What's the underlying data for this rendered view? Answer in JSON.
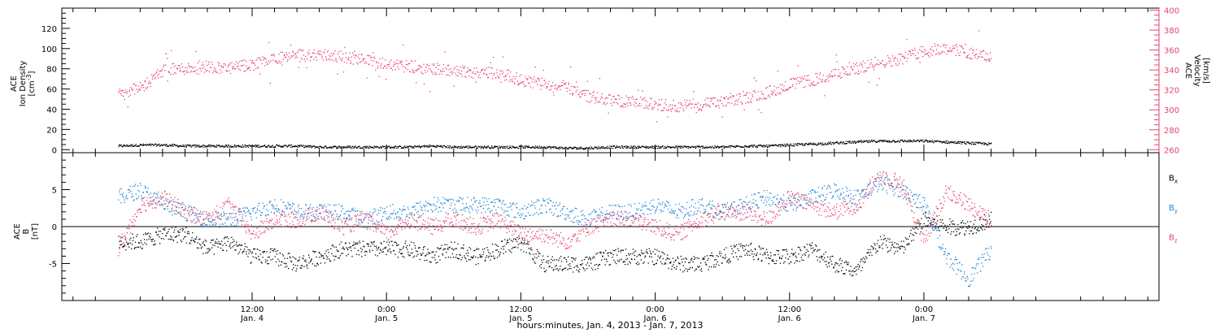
{
  "colors": {
    "black": "#000000",
    "pink": "#e8436b",
    "blue": "#1f87d6"
  },
  "chart_data": [
    {
      "type": "scatter",
      "panel": "top",
      "y_left_label_lines": [
        "ACE",
        "Ion Density",
        "[cm^-3]"
      ],
      "y_right_label_lines": [
        "ACE",
        "Velocity",
        "[km/s]"
      ],
      "ylim_left": [
        -3,
        140
      ],
      "ylim_right": [
        257,
        402
      ],
      "yticks_left": [
        0,
        20,
        40,
        60,
        80,
        100,
        120
      ],
      "yticks_right": [
        260,
        280,
        300,
        320,
        340,
        360,
        380,
        400
      ],
      "series": [
        {
          "axis": "left",
          "color": "#000000",
          "x": [
            0,
            2,
            4,
            6,
            8,
            10,
            12,
            14,
            16,
            18,
            20,
            22,
            24,
            26,
            28,
            30,
            32,
            34,
            36,
            38,
            40,
            42,
            44,
            46,
            48,
            50,
            52,
            54,
            56,
            58,
            60,
            62,
            64,
            66,
            68,
            70,
            72,
            74,
            76,
            78
          ],
          "values": [
            4,
            5,
            5,
            4,
            4,
            4,
            4,
            4,
            4,
            3,
            3,
            3,
            3,
            3,
            4,
            3,
            3,
            3,
            3,
            3,
            2,
            2,
            3,
            3,
            3,
            3,
            3,
            3,
            4,
            4,
            5,
            6,
            7,
            8,
            9,
            9,
            9,
            8,
            7,
            6
          ]
        },
        {
          "axis": "right",
          "color": "#e8436b",
          "x": [
            0,
            2,
            4,
            6,
            8,
            10,
            12,
            14,
            16,
            18,
            20,
            22,
            24,
            26,
            28,
            30,
            32,
            34,
            36,
            38,
            40,
            42,
            44,
            46,
            48,
            50,
            52,
            54,
            56,
            58,
            60,
            62,
            64,
            66,
            68,
            70,
            72,
            74,
            76,
            78
          ],
          "values": [
            318,
            322,
            340,
            342,
            344,
            342,
            346,
            352,
            354,
            356,
            354,
            350,
            346,
            344,
            342,
            340,
            338,
            338,
            330,
            326,
            324,
            314,
            310,
            308,
            306,
            304,
            306,
            308,
            312,
            318,
            326,
            330,
            336,
            342,
            348,
            352,
            360,
            362,
            358,
            352
          ]
        }
      ]
    },
    {
      "type": "scatter",
      "panel": "bottom",
      "y_label_lines": [
        "ACE",
        "B",
        "[nT]"
      ],
      "ylim": [
        -10,
        10
      ],
      "yticks": [
        -5,
        0,
        5
      ],
      "legend_position": "right",
      "legend": [
        {
          "name": "Bx",
          "base": "B",
          "sub": "x",
          "color": "#000000"
        },
        {
          "name": "By",
          "base": "B",
          "sub": "y",
          "color": "#1f87d6"
        },
        {
          "name": "Bz",
          "base": "B",
          "sub": "z",
          "color": "#e8436b"
        }
      ],
      "series": [
        {
          "name": "Bx",
          "color": "#000000",
          "x": [
            0,
            2,
            4,
            6,
            8,
            10,
            12,
            14,
            16,
            18,
            20,
            22,
            24,
            26,
            28,
            30,
            32,
            34,
            36,
            38,
            40,
            42,
            44,
            46,
            48,
            50,
            52,
            54,
            56,
            58,
            60,
            62,
            64,
            66,
            68,
            70,
            72,
            74,
            76,
            78
          ],
          "values": [
            -2,
            -2,
            -1,
            -1,
            -3,
            -2,
            -4,
            -4,
            -5,
            -4,
            -3,
            -3,
            -3,
            -3,
            -4,
            -3,
            -4,
            -3,
            -2,
            -5,
            -5,
            -5,
            -4,
            -4,
            -4,
            -5,
            -5,
            -4,
            -3,
            -4,
            -4,
            -3,
            -5,
            -6,
            -2,
            -3,
            1,
            0,
            0,
            1
          ]
        },
        {
          "name": "By",
          "color": "#1f87d6",
          "x": [
            0,
            2,
            4,
            6,
            8,
            10,
            12,
            14,
            16,
            18,
            20,
            22,
            24,
            26,
            28,
            30,
            32,
            34,
            36,
            38,
            40,
            42,
            44,
            46,
            48,
            50,
            52,
            54,
            56,
            58,
            60,
            62,
            64,
            66,
            68,
            70,
            72,
            74,
            76,
            78
          ],
          "values": [
            4,
            5,
            3,
            2,
            1,
            1,
            2,
            3,
            2,
            2,
            2,
            1,
            2,
            2,
            3,
            3,
            3,
            3,
            2,
            3,
            2,
            1,
            2,
            2,
            3,
            2,
            3,
            2,
            3,
            4,
            3,
            4,
            5,
            4,
            6,
            5,
            3,
            -4,
            -7,
            -3
          ]
        },
        {
          "name": "Bz",
          "color": "#e8436b",
          "x": [
            0,
            2,
            4,
            6,
            8,
            10,
            12,
            14,
            16,
            18,
            20,
            22,
            24,
            26,
            28,
            30,
            32,
            34,
            36,
            38,
            40,
            42,
            44,
            46,
            48,
            50,
            52,
            54,
            56,
            58,
            60,
            62,
            64,
            66,
            68,
            70,
            72,
            74,
            76,
            78
          ],
          "values": [
            -3,
            3,
            4,
            2,
            1,
            3,
            -1,
            1,
            1,
            2,
            0,
            1,
            -1,
            1,
            0,
            1,
            0,
            1,
            -1,
            -1,
            -2,
            0,
            1,
            1,
            0,
            -1,
            1,
            2,
            2,
            1,
            4,
            3,
            2,
            3,
            7,
            6,
            -2,
            5,
            3,
            1
          ]
        }
      ]
    }
  ],
  "xaxis": {
    "xlim": [
      -5,
      93
    ],
    "ticks": [
      {
        "x": 12,
        "time": "12:00",
        "day": "Jan. 4"
      },
      {
        "x": 24,
        "time": "0:00",
        "day": "Jan. 5"
      },
      {
        "x": 36,
        "time": "12:00",
        "day": "Jan. 5"
      },
      {
        "x": 48,
        "time": "0:00",
        "day": "Jan. 6"
      },
      {
        "x": 60,
        "time": "12:00",
        "day": "Jan. 6"
      },
      {
        "x": 72,
        "time": "0:00",
        "day": "Jan. 7"
      }
    ],
    "title": "hours:minutes, Jan.  4, 2013 - Jan.  7, 2013"
  }
}
